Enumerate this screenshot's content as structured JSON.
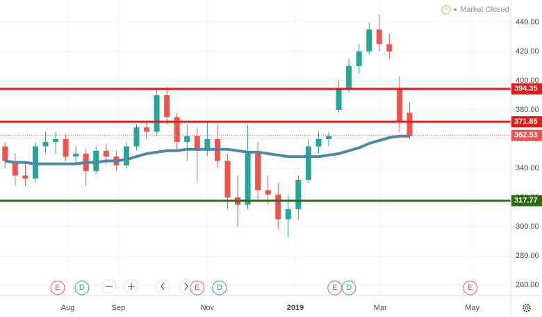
{
  "status": "Market Closed",
  "chart_data": {
    "type": "candlestick",
    "up_color": "#26a69a",
    "down_color": "#ef5350",
    "open": [
      355,
      345,
      335,
      333,
      355,
      358,
      360,
      348,
      350,
      338,
      352,
      348,
      342,
      355,
      368,
      365,
      390,
      375,
      358,
      362,
      352,
      360,
      345,
      320,
      315,
      350,
      325,
      322,
      305,
      312,
      332,
      355,
      360,
      380,
      395,
      410,
      420,
      435,
      425,
      395,
      378
    ],
    "high": [
      358,
      350,
      345,
      358,
      365,
      365,
      363,
      355,
      353,
      355,
      357,
      352,
      358,
      370,
      372,
      395,
      396,
      378,
      370,
      368,
      372,
      370,
      350,
      335,
      370,
      358,
      335,
      330,
      322,
      335,
      360,
      365,
      365,
      400,
      415,
      425,
      440,
      445,
      432,
      403,
      385
    ],
    "low": [
      340,
      328,
      328,
      330,
      350,
      350,
      345,
      343,
      328,
      336,
      343,
      338,
      340,
      352,
      360,
      362,
      370,
      352,
      345,
      330,
      348,
      340,
      312,
      300,
      312,
      318,
      315,
      298,
      293,
      305,
      330,
      350,
      355,
      378,
      392,
      405,
      418,
      420,
      415,
      365,
      360
    ],
    "close": [
      345,
      335,
      333,
      355,
      358,
      360,
      348,
      350,
      338,
      352,
      348,
      342,
      355,
      368,
      365,
      390,
      375,
      358,
      362,
      352,
      360,
      345,
      320,
      315,
      350,
      325,
      322,
      305,
      312,
      332,
      355,
      360,
      362,
      395,
      410,
      420,
      435,
      425,
      420,
      372,
      362
    ],
    "ma": {
      "color": "#4a89a8",
      "values": [
        345,
        344,
        344,
        343,
        343,
        343,
        343,
        343,
        344,
        344,
        345,
        345,
        346,
        348,
        350,
        351,
        352,
        352,
        353,
        353,
        353,
        353,
        353,
        352,
        351,
        351,
        350,
        349,
        348,
        348,
        348,
        348,
        349,
        350,
        352,
        354,
        357,
        359,
        361,
        362,
        362
      ]
    },
    "levels": [
      {
        "value": 394.35,
        "color": "#e31b1b"
      },
      {
        "value": 371.85,
        "color": "#e31b1b"
      },
      {
        "value": 317.77,
        "color": "#2e6a0e"
      }
    ],
    "last_price": {
      "value": 362.53,
      "color": "#ef5350"
    },
    "ylim": [
      252.9,
      455.2
    ],
    "yticks": [
      {
        "value": 260,
        "label": "260.00"
      },
      {
        "value": 280,
        "label": "280.00"
      },
      {
        "value": 300,
        "label": "300.00"
      },
      {
        "value": 320,
        "label": "320.00"
      },
      {
        "value": 340,
        "label": "340.00"
      },
      {
        "value": 360,
        "label": "360.00"
      },
      {
        "value": 380,
        "label": "380.00"
      },
      {
        "value": 400,
        "label": "400.00"
      },
      {
        "value": 420,
        "label": "420.00"
      },
      {
        "value": 440,
        "label": "440.00"
      }
    ],
    "xlim": [
      -0.5,
      50
    ],
    "xticks": [
      {
        "value": 6.2,
        "label": "Aug"
      },
      {
        "value": 11.2,
        "label": "Sep"
      },
      {
        "value": 20,
        "label": "Nov"
      },
      {
        "value": 28.7,
        "label": "2019"
      },
      {
        "value": 37.1,
        "label": "Mar"
      },
      {
        "value": 46.2,
        "label": "May"
      }
    ],
    "events": [
      {
        "x": 5.2,
        "label": "E",
        "color": "#ef5350"
      },
      {
        "x": 7.6,
        "label": "D",
        "color": "#2196f3"
      },
      {
        "x": 19,
        "label": "E",
        "color": "#ef5350"
      },
      {
        "x": 21.2,
        "label": "D",
        "color": "#2196f3"
      },
      {
        "x": 32.6,
        "label": "E",
        "color": "#ef5350"
      },
      {
        "x": 34,
        "label": "D",
        "color": "#2196f3"
      },
      {
        "x": 46,
        "label": "E",
        "color": "#ef5350"
      }
    ]
  }
}
